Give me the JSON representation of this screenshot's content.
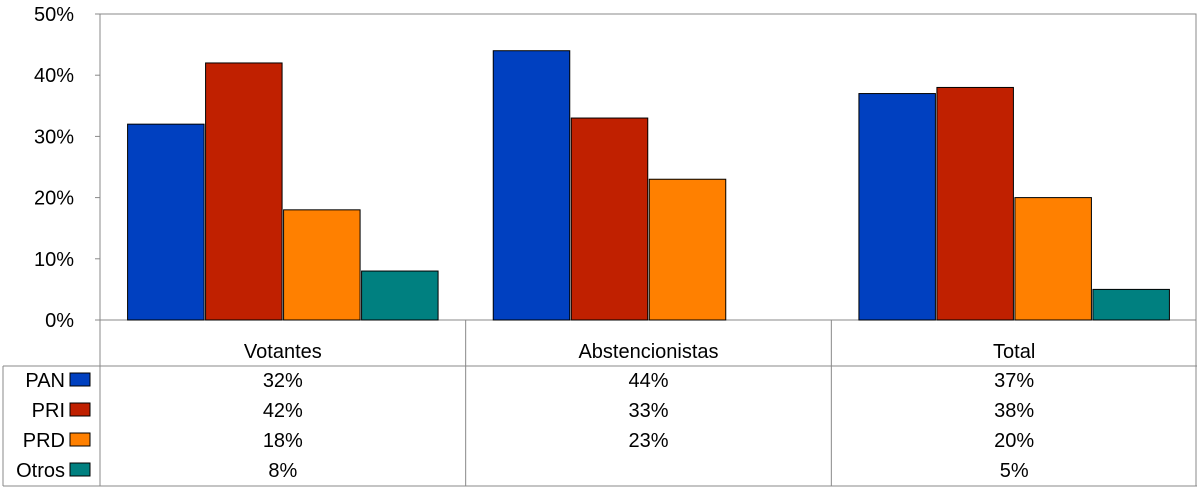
{
  "chart_data": {
    "type": "bar",
    "categories": [
      "Votantes",
      "Abstencionistas",
      "Total"
    ],
    "series": [
      {
        "name": "PAN",
        "color": "#0040C0",
        "values": [
          32,
          44,
          37
        ],
        "labels": [
          "32%",
          "44%",
          "37%"
        ]
      },
      {
        "name": "PRI",
        "color": "#C02000",
        "values": [
          42,
          33,
          38
        ],
        "labels": [
          "42%",
          "33%",
          "38%"
        ]
      },
      {
        "name": "PRD",
        "color": "#FF8000",
        "values": [
          18,
          23,
          20
        ],
        "labels": [
          "18%",
          "23%",
          "20%"
        ]
      },
      {
        "name": "Otros",
        "color": "#008080",
        "values": [
          8,
          null,
          5
        ],
        "labels": [
          "8%",
          "",
          "5%"
        ]
      }
    ],
    "ylim": [
      0,
      50
    ],
    "yticks": [
      0,
      10,
      20,
      30,
      40,
      50
    ],
    "ytick_labels": [
      "0%",
      "10%",
      "20%",
      "30%",
      "40%",
      "50%"
    ],
    "data_table": true,
    "grid": false
  }
}
